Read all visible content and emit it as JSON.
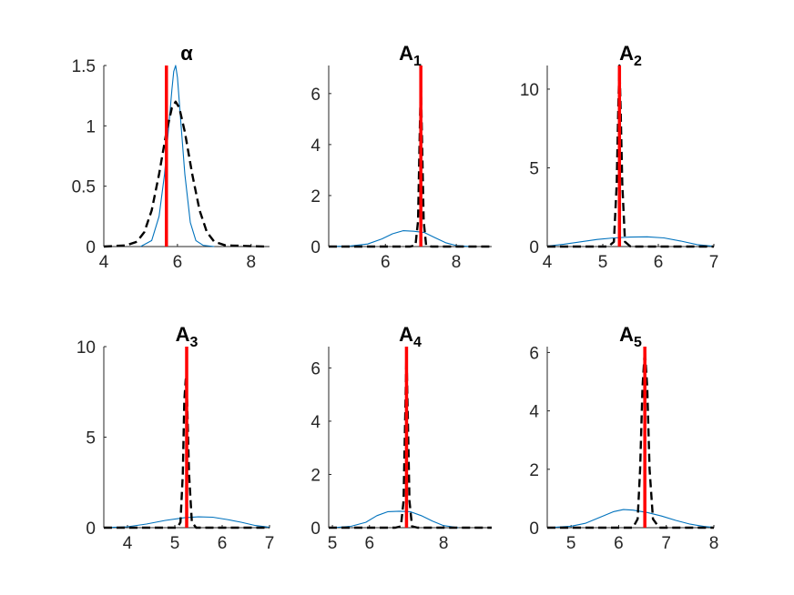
{
  "chart_data": [
    {
      "type": "line",
      "title": "α",
      "xlim": [
        4,
        8.5
      ],
      "ylim": [
        0,
        1.5
      ],
      "xticks": [
        4,
        6,
        8
      ],
      "yticks": [
        0,
        0.5,
        1,
        1.5
      ],
      "xtick_labels": [
        "4",
        "6",
        "8"
      ],
      "ytick_labels": [
        "0",
        "0.5",
        "1",
        "1.5"
      ],
      "true_value": 5.7,
      "series": [
        {
          "style": "solid",
          "color": "#0072BD",
          "x": [
            5.0,
            5.3,
            5.5,
            5.65,
            5.75,
            5.85,
            5.9,
            5.95,
            6.0,
            6.1,
            6.2,
            6.35,
            6.5,
            6.7,
            7.0
          ],
          "y": [
            0,
            0.05,
            0.25,
            0.6,
            0.95,
            1.3,
            1.45,
            1.5,
            1.4,
            1.0,
            0.6,
            0.2,
            0.05,
            0.01,
            0
          ]
        },
        {
          "style": "dashed",
          "color": "#000000",
          "x": [
            4.0,
            4.6,
            4.9,
            5.1,
            5.3,
            5.5,
            5.7,
            5.85,
            5.95,
            6.05,
            6.2,
            6.4,
            6.6,
            6.8,
            7.0,
            7.3,
            8.4
          ],
          "y": [
            0,
            0.01,
            0.04,
            0.12,
            0.3,
            0.6,
            0.95,
            1.15,
            1.2,
            1.15,
            0.95,
            0.6,
            0.3,
            0.12,
            0.04,
            0.01,
            0
          ]
        }
      ]
    },
    {
      "type": "line",
      "title": "A",
      "title_sub": "1",
      "xlim": [
        4.4,
        9.0
      ],
      "ylim": [
        0,
        7.1
      ],
      "xticks": [
        6,
        8
      ],
      "yticks": [
        0,
        2,
        4,
        6
      ],
      "xtick_labels": [
        "6",
        "8"
      ],
      "ytick_labels": [
        "0",
        "2",
        "4",
        "6"
      ],
      "true_value": 7.0,
      "series": [
        {
          "style": "solid",
          "color": "#0072BD",
          "x": [
            4.4,
            5.0,
            5.5,
            5.9,
            6.2,
            6.5,
            6.8,
            7.1,
            7.4,
            7.7,
            8.0,
            8.4
          ],
          "y": [
            0,
            0.02,
            0.1,
            0.3,
            0.5,
            0.62,
            0.6,
            0.55,
            0.35,
            0.15,
            0.04,
            0
          ]
        },
        {
          "style": "dashed",
          "color": "#000000",
          "x": [
            4.4,
            6.7,
            6.85,
            6.92,
            6.97,
            7.0,
            7.03,
            7.08,
            7.15,
            7.3,
            9.0
          ],
          "y": [
            0,
            0,
            0.05,
            1.0,
            4.5,
            6.5,
            4.5,
            1.0,
            0.05,
            0,
            0
          ]
        }
      ]
    },
    {
      "type": "line",
      "title": "A",
      "title_sub": "2",
      "xlim": [
        4,
        7
      ],
      "ylim": [
        0,
        11.5
      ],
      "xticks": [
        4,
        5,
        6,
        7
      ],
      "yticks": [
        0,
        5,
        10
      ],
      "xtick_labels": [
        "4",
        "5",
        "6",
        "7"
      ],
      "ytick_labels": [
        "0",
        "5",
        "10"
      ],
      "true_value": 5.3,
      "series": [
        {
          "style": "solid",
          "color": "#0072BD",
          "x": [
            4.0,
            4.3,
            4.6,
            4.9,
            5.2,
            5.5,
            5.8,
            6.1,
            6.4,
            6.7,
            7.0
          ],
          "y": [
            0.03,
            0.15,
            0.3,
            0.45,
            0.55,
            0.6,
            0.62,
            0.55,
            0.35,
            0.12,
            0.02
          ]
        },
        {
          "style": "dashed",
          "color": "#000000",
          "x": [
            4.0,
            5.1,
            5.2,
            5.25,
            5.28,
            5.3,
            5.32,
            5.35,
            5.4,
            5.5,
            7.0
          ],
          "y": [
            0,
            0,
            0.3,
            4.0,
            9.0,
            11.5,
            9.0,
            4.0,
            0.3,
            0,
            0
          ]
        }
      ]
    },
    {
      "type": "line",
      "title": "A",
      "title_sub": "3",
      "xlim": [
        3.5,
        7
      ],
      "ylim": [
        0,
        10
      ],
      "xticks": [
        4,
        5,
        6,
        7
      ],
      "yticks": [
        0,
        5,
        10
      ],
      "xtick_labels": [
        "4",
        "5",
        "6",
        "7"
      ],
      "ytick_labels": [
        "0",
        "5",
        "10"
      ],
      "true_value": 5.25,
      "series": [
        {
          "style": "solid",
          "color": "#0072BD",
          "x": [
            3.5,
            4.0,
            4.4,
            4.8,
            5.2,
            5.5,
            5.8,
            6.1,
            6.4,
            6.7,
            7.0
          ],
          "y": [
            0,
            0.05,
            0.2,
            0.4,
            0.55,
            0.6,
            0.58,
            0.45,
            0.3,
            0.12,
            0.02
          ]
        },
        {
          "style": "dashed",
          "color": "#000000",
          "x": [
            3.5,
            5.05,
            5.12,
            5.17,
            5.2,
            5.23,
            5.26,
            5.3,
            5.36,
            5.45,
            7.0
          ],
          "y": [
            0,
            0,
            0.3,
            3.0,
            7.0,
            8.2,
            7.0,
            3.0,
            0.3,
            0,
            0
          ]
        }
      ]
    },
    {
      "type": "line",
      "title": "A",
      "title_sub": "4",
      "xlim": [
        4.9,
        9.3
      ],
      "ylim": [
        0,
        6.8
      ],
      "xticks": [
        5,
        6,
        8
      ],
      "yticks": [
        0,
        2,
        4,
        6
      ],
      "xtick_labels": [
        "5",
        "6",
        "8"
      ],
      "ytick_labels": [
        "0",
        "2",
        "4",
        "6"
      ],
      "true_value": 7.0,
      "series": [
        {
          "style": "solid",
          "color": "#0072BD",
          "x": [
            5.0,
            5.5,
            5.9,
            6.2,
            6.5,
            6.8,
            7.1,
            7.4,
            7.7,
            8.0,
            8.4
          ],
          "y": [
            0,
            0.05,
            0.2,
            0.45,
            0.6,
            0.62,
            0.6,
            0.45,
            0.25,
            0.08,
            0
          ]
        },
        {
          "style": "dashed",
          "color": "#000000",
          "x": [
            4.9,
            6.7,
            6.85,
            6.92,
            6.97,
            7.0,
            7.03,
            7.08,
            7.15,
            7.3,
            9.3
          ],
          "y": [
            0,
            0,
            0.05,
            1.0,
            4.5,
            6.6,
            4.5,
            1.0,
            0.05,
            0,
            0
          ]
        }
      ]
    },
    {
      "type": "line",
      "title": "A",
      "title_sub": "5",
      "xlim": [
        4.5,
        8
      ],
      "ylim": [
        0,
        6.2
      ],
      "xticks": [
        5,
        6,
        7,
        8
      ],
      "yticks": [
        0,
        2,
        4,
        6
      ],
      "xtick_labels": [
        "5",
        "6",
        "7",
        "8"
      ],
      "ytick_labels": [
        "0",
        "2",
        "4",
        "6"
      ],
      "true_value": 6.55,
      "series": [
        {
          "style": "solid",
          "color": "#0072BD",
          "x": [
            4.5,
            5.0,
            5.3,
            5.6,
            5.9,
            6.1,
            6.3,
            6.6,
            6.9,
            7.2,
            7.5,
            7.8,
            8.0
          ],
          "y": [
            0,
            0.05,
            0.15,
            0.35,
            0.55,
            0.62,
            0.6,
            0.52,
            0.4,
            0.25,
            0.12,
            0.04,
            0.01
          ]
        },
        {
          "style": "dashed",
          "color": "#000000",
          "x": [
            4.5,
            6.3,
            6.4,
            6.45,
            6.5,
            6.55,
            6.6,
            6.65,
            6.72,
            6.85,
            8.0
          ],
          "y": [
            0,
            0,
            0.3,
            2.0,
            4.8,
            6.1,
            4.8,
            2.0,
            0.3,
            0,
            0
          ]
        }
      ]
    }
  ]
}
